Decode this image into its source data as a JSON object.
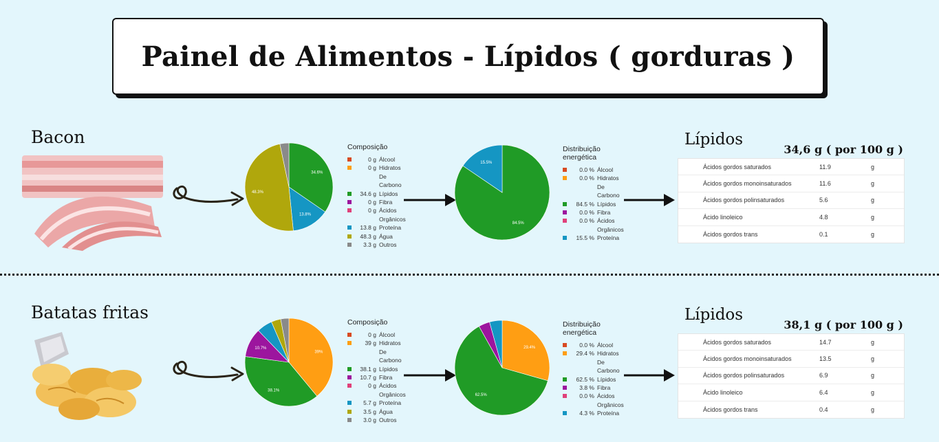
{
  "title": "Painel de Alimentos - Lípidos ( gorduras )",
  "colors": {
    "red": "#d84a22",
    "orange": "#ff9e13",
    "green": "#209b26",
    "purple": "#9c159e",
    "pink": "#e0407a",
    "blue": "#1596c3",
    "olive": "#b0a70c",
    "gray": "#8a8a8a"
  },
  "sections": [
    {
      "food": "Bacon",
      "composition": {
        "title": "Composição",
        "rows": [
          {
            "value": "0   g",
            "label": "Álcool",
            "color": "#d84a22"
          },
          {
            "value": "0   g",
            "label": "Hidratos De Carbono",
            "color": "#ff9e13"
          },
          {
            "value": "34.6 g",
            "label": "Lípidos",
            "color": "#209b26"
          },
          {
            "value": "0   g",
            "label": "Fibra",
            "color": "#9c159e"
          },
          {
            "value": "0   g",
            "label": "Ácidos Orgânicos",
            "color": "#e0407a"
          },
          {
            "value": "13.8 g",
            "label": "Proteína",
            "color": "#1596c3"
          },
          {
            "value": "48.3 g",
            "label": "Água",
            "color": "#b0a70c"
          },
          {
            "value": "3.3 g",
            "label": "Outros",
            "color": "#8a8a8a"
          }
        ],
        "pie_labels": [
          "34.6%",
          "13.8%",
          "48.3%"
        ]
      },
      "energy": {
        "title": "Distribuição energética",
        "rows": [
          {
            "value": "0.0 %",
            "label": "Álcool",
            "color": "#d84a22"
          },
          {
            "value": "0.0 %",
            "label": "Hidratos De Carbono",
            "color": "#ff9e13"
          },
          {
            "value": "84.5 %",
            "label": "Lípidos",
            "color": "#209b26"
          },
          {
            "value": "0.0 %",
            "label": "Fibra",
            "color": "#9c159e"
          },
          {
            "value": "0.0 %",
            "label": "Ácidos Orgânicos",
            "color": "#e0407a"
          },
          {
            "value": "15.5 %",
            "label": "Proteína",
            "color": "#1596c3"
          }
        ],
        "pie_labels": [
          "84.5%",
          "15.5%"
        ]
      },
      "lipids": {
        "title": "Lípidos",
        "subtitle": "34,6 g ( por 100 g )",
        "rows": [
          {
            "name": "Ácidos gordos saturados",
            "value": "11.9",
            "unit": "g"
          },
          {
            "name": "Ácidos gordos monoinsaturados",
            "value": "11.6",
            "unit": "g"
          },
          {
            "name": "Ácidos gordos polinsaturados",
            "value": "5.6",
            "unit": "g"
          },
          {
            "name": "Ácido linoleico",
            "value": "4.8",
            "unit": "g"
          },
          {
            "name": "Ácidos gordos trans",
            "value": "0.1",
            "unit": "g"
          }
        ]
      }
    },
    {
      "food": "Batatas fritas",
      "composition": {
        "title": "Composição",
        "rows": [
          {
            "value": "0   g",
            "label": "Álcool",
            "color": "#d84a22"
          },
          {
            "value": "39   g",
            "label": "Hidratos De Carbono",
            "color": "#ff9e13"
          },
          {
            "value": "38.1 g",
            "label": "Lípidos",
            "color": "#209b26"
          },
          {
            "value": "10.7 g",
            "label": "Fibra",
            "color": "#9c159e"
          },
          {
            "value": "0   g",
            "label": "Ácidos Orgânicos",
            "color": "#e0407a"
          },
          {
            "value": "5.7 g",
            "label": "Proteína",
            "color": "#1596c3"
          },
          {
            "value": "3.5 g",
            "label": "Água",
            "color": "#b0a70c"
          },
          {
            "value": "3.0 g",
            "label": "Outros",
            "color": "#8a8a8a"
          }
        ],
        "pie_labels": [
          "39%",
          "38.1%",
          "10.7%"
        ]
      },
      "energy": {
        "title": "Distribuição energética",
        "rows": [
          {
            "value": "0.0 %",
            "label": "Álcool",
            "color": "#d84a22"
          },
          {
            "value": "29.4 %",
            "label": "Hidratos De Carbono",
            "color": "#ff9e13"
          },
          {
            "value": "62.5 %",
            "label": "Lípidos",
            "color": "#209b26"
          },
          {
            "value": "3.8 %",
            "label": "Fibra",
            "color": "#9c159e"
          },
          {
            "value": "0.0 %",
            "label": "Ácidos Orgânicos",
            "color": "#e0407a"
          },
          {
            "value": "4.3 %",
            "label": "Proteína",
            "color": "#1596c3"
          }
        ],
        "pie_labels": [
          "29.4%",
          "62.5%"
        ]
      },
      "lipids": {
        "title": "Lípidos",
        "subtitle": "38,1 g ( por 100 g )",
        "rows": [
          {
            "name": "Ácidos gordos saturados",
            "value": "14.7",
            "unit": "g"
          },
          {
            "name": "Ácidos gordos monoinsaturados",
            "value": "13.5",
            "unit": "g"
          },
          {
            "name": "Ácidos gordos polinsaturados",
            "value": "6.9",
            "unit": "g"
          },
          {
            "name": "Ácido linoleico",
            "value": "6.4",
            "unit": "g"
          },
          {
            "name": "Ácidos gordos trans",
            "value": "0.4",
            "unit": "g"
          }
        ]
      }
    }
  ],
  "chart_data": [
    {
      "type": "pie",
      "title": "Composição",
      "categories": [
        "Álcool",
        "Hidratos De Carbono",
        "Lípidos",
        "Fibra",
        "Ácidos Orgânicos",
        "Proteína",
        "Água",
        "Outros"
      ],
      "values": [
        0,
        0,
        34.6,
        0,
        0,
        13.8,
        48.3,
        3.3
      ],
      "colors": [
        "#d84a22",
        "#ff9e13",
        "#209b26",
        "#9c159e",
        "#e0407a",
        "#1596c3",
        "#b0a70c",
        "#8a8a8a"
      ],
      "units": "g"
    },
    {
      "type": "pie",
      "title": "Distribuição energética",
      "categories": [
        "Álcool",
        "Hidratos De Carbono",
        "Lípidos",
        "Fibra",
        "Ácidos Orgânicos",
        "Proteína"
      ],
      "values": [
        0,
        0,
        84.5,
        0,
        0,
        15.5
      ],
      "colors": [
        "#d84a22",
        "#ff9e13",
        "#209b26",
        "#9c159e",
        "#e0407a",
        "#1596c3"
      ],
      "units": "%"
    },
    {
      "type": "pie",
      "title": "Composição",
      "categories": [
        "Álcool",
        "Hidratos De Carbono",
        "Lípidos",
        "Fibra",
        "Ácidos Orgânicos",
        "Proteína",
        "Água",
        "Outros"
      ],
      "values": [
        0,
        39,
        38.1,
        10.7,
        0,
        5.7,
        3.5,
        3.0
      ],
      "colors": [
        "#d84a22",
        "#ff9e13",
        "#209b26",
        "#9c159e",
        "#e0407a",
        "#1596c3",
        "#b0a70c",
        "#8a8a8a"
      ],
      "units": "g"
    },
    {
      "type": "pie",
      "title": "Distribuição energética",
      "categories": [
        "Álcool",
        "Hidratos De Carbono",
        "Lípidos",
        "Fibra",
        "Ácidos Orgânicos",
        "Proteína"
      ],
      "values": [
        0,
        29.4,
        62.5,
        3.8,
        0,
        4.3
      ],
      "colors": [
        "#d84a22",
        "#ff9e13",
        "#209b26",
        "#9c159e",
        "#e0407a",
        "#1596c3"
      ],
      "units": "%"
    }
  ]
}
